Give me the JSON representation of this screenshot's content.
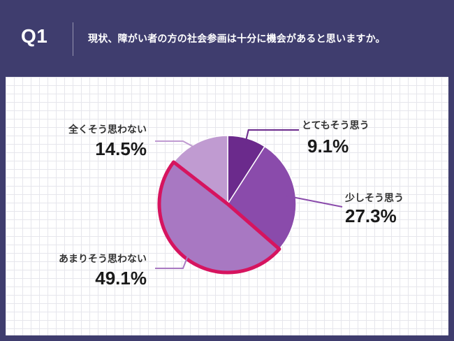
{
  "header": {
    "question_number": "Q1",
    "question_text": "現状、障がい者の方の社会参画は十分に機会があると思いますか。"
  },
  "colors": {
    "header_bg": "#3f3d6e",
    "highlight": "#d6145f",
    "slice_colors": [
      "#6b2a8c",
      "#8a4bab",
      "#a878c2",
      "#c09bd1"
    ]
  },
  "chart_data": {
    "type": "pie",
    "title": "",
    "start": "12 o'clock",
    "direction": "clockwise",
    "highlighted_slice": "あまりそう思わない",
    "slices": [
      {
        "label": "とてもそう思う",
        "value": 9.1,
        "display": "9.1%"
      },
      {
        "label": "少しそう思う",
        "value": 27.3,
        "display": "27.3%"
      },
      {
        "label": "あまりそう思わない",
        "value": 49.1,
        "display": "49.1%"
      },
      {
        "label": "全くそう思わない",
        "value": 14.5,
        "display": "14.5%"
      }
    ]
  }
}
